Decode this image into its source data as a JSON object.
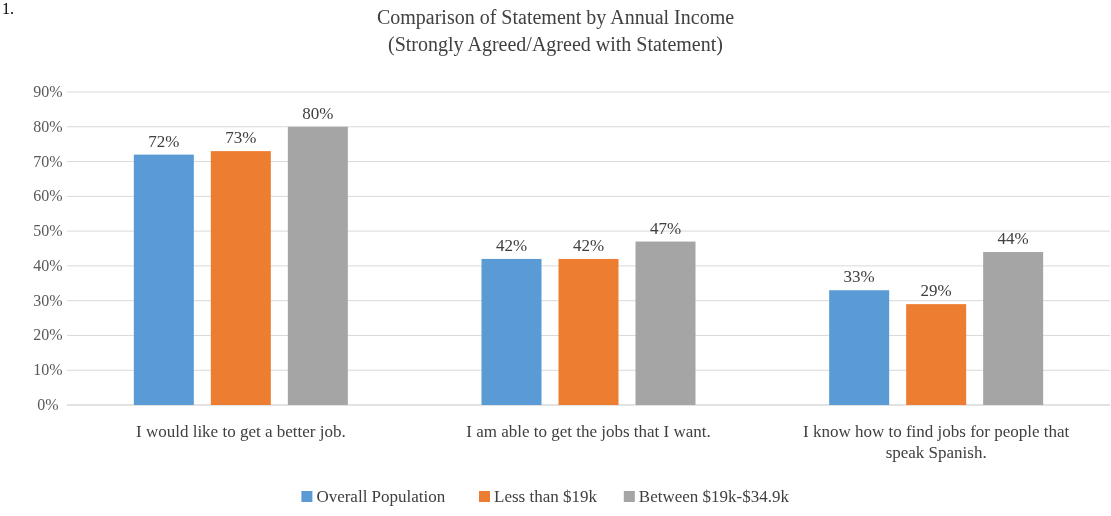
{
  "chart_data": {
    "type": "bar",
    "title": "Comparison of Statement by Annual Income",
    "subtitle": "(Strongly Agreed/Agreed with Statement)",
    "annotations": [
      "1."
    ],
    "categories": [
      "I would like to get a better job.",
      "I am able to get the jobs that I want.",
      "I know how to find jobs for people that speak Spanish."
    ],
    "series": [
      {
        "name": "Overall Population",
        "color": "#5b9bd5",
        "values": [
          72,
          42,
          33
        ],
        "value_labels": [
          "72%",
          "42%",
          "33%"
        ]
      },
      {
        "name": "Less than $19k",
        "color": "#ed7d31",
        "values": [
          73,
          42,
          29
        ],
        "value_labels": [
          "73%",
          "42%",
          "29%"
        ]
      },
      {
        "name": "Between $19k-$34.9k",
        "color": "#a5a5a5",
        "values": [
          80,
          47,
          44
        ],
        "value_labels": [
          "80%",
          "47%",
          "44%"
        ]
      }
    ],
    "ylim": [
      0,
      90
    ],
    "yticks": [
      {
        "value": 0,
        "label": "0%"
      },
      {
        "value": 10,
        "label": "10%"
      },
      {
        "value": 20,
        "label": "20%"
      },
      {
        "value": 30,
        "label": "30%"
      },
      {
        "value": 40,
        "label": "40%"
      },
      {
        "value": 50,
        "label": "50%"
      },
      {
        "value": 60,
        "label": "60%"
      },
      {
        "value": 70,
        "label": "70%"
      },
      {
        "value": 80,
        "label": "80%"
      },
      {
        "value": 90,
        "label": "90%"
      }
    ],
    "grid": "y",
    "legend": "bottom"
  }
}
